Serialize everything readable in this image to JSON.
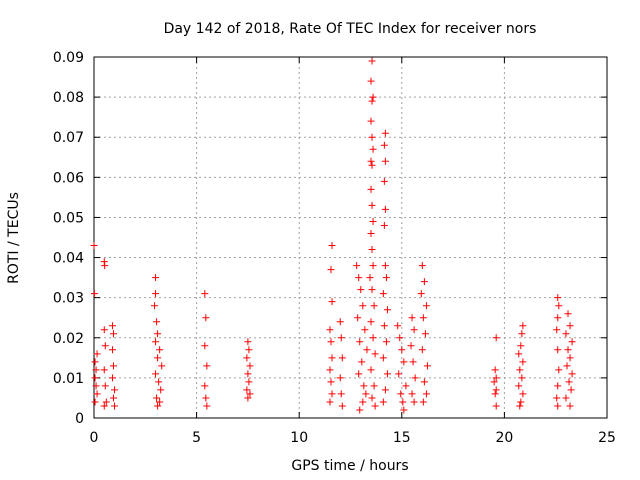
{
  "chart_data": {
    "type": "scatter",
    "title": "Day 142 of 2018, Rate Of TEC Index for receiver nors",
    "xlabel": "GPS time / hours",
    "ylabel": "ROTI / TECUs",
    "xlim": [
      0,
      25
    ],
    "ylim": [
      0,
      0.09
    ],
    "xticks": [
      0,
      5,
      10,
      15,
      20,
      25
    ],
    "xtick_labels": [
      "0",
      "5",
      "10",
      "15",
      "20",
      "25"
    ],
    "yticks": [
      0,
      0.01,
      0.02,
      0.03,
      0.04,
      0.05,
      0.06,
      0.07,
      0.08,
      0.09
    ],
    "ytick_labels": [
      "0",
      "0.01",
      "0.02",
      "0.03",
      "0.04",
      "0.05",
      "0.06",
      "0.07",
      "0.08",
      "0.09"
    ],
    "grid": true,
    "marker": "+",
    "color": "#ff0000",
    "series": [
      {
        "name": "ROTI",
        "points": [
          [
            0.0,
            0.043
          ],
          [
            0.02,
            0.031
          ],
          [
            0.05,
            0.014
          ],
          [
            0.05,
            0.01
          ],
          [
            0.05,
            0.004
          ],
          [
            0.1,
            0.012
          ],
          [
            0.1,
            0.008
          ],
          [
            0.15,
            0.016
          ],
          [
            0.15,
            0.006
          ],
          [
            0.5,
            0.039
          ],
          [
            0.52,
            0.038
          ],
          [
            0.5,
            0.022
          ],
          [
            0.55,
            0.018
          ],
          [
            0.5,
            0.012
          ],
          [
            0.55,
            0.008
          ],
          [
            0.6,
            0.004
          ],
          [
            0.5,
            0.003
          ],
          [
            0.9,
            0.023
          ],
          [
            0.95,
            0.021
          ],
          [
            0.9,
            0.017
          ],
          [
            0.95,
            0.013
          ],
          [
            0.9,
            0.01
          ],
          [
            1.0,
            0.007
          ],
          [
            0.95,
            0.005
          ],
          [
            1.0,
            0.003
          ],
          [
            3.0,
            0.035
          ],
          [
            3.0,
            0.031
          ],
          [
            2.95,
            0.028
          ],
          [
            3.05,
            0.024
          ],
          [
            3.1,
            0.021
          ],
          [
            3.0,
            0.019
          ],
          [
            3.2,
            0.017
          ],
          [
            3.1,
            0.015
          ],
          [
            3.3,
            0.013
          ],
          [
            3.0,
            0.011
          ],
          [
            3.15,
            0.009
          ],
          [
            3.25,
            0.007
          ],
          [
            3.05,
            0.005
          ],
          [
            3.2,
            0.004
          ],
          [
            3.1,
            0.003
          ],
          [
            5.4,
            0.031
          ],
          [
            5.45,
            0.025
          ],
          [
            5.4,
            0.018
          ],
          [
            5.5,
            0.013
          ],
          [
            5.4,
            0.008
          ],
          [
            5.45,
            0.005
          ],
          [
            5.5,
            0.003
          ],
          [
            7.5,
            0.019
          ],
          [
            7.55,
            0.017
          ],
          [
            7.45,
            0.015
          ],
          [
            7.6,
            0.013
          ],
          [
            7.5,
            0.011
          ],
          [
            7.55,
            0.009
          ],
          [
            7.45,
            0.007
          ],
          [
            7.6,
            0.006
          ],
          [
            7.5,
            0.005
          ],
          [
            11.6,
            0.043
          ],
          [
            11.55,
            0.037
          ],
          [
            11.6,
            0.029
          ],
          [
            11.5,
            0.022
          ],
          [
            11.55,
            0.019
          ],
          [
            11.6,
            0.015
          ],
          [
            11.5,
            0.012
          ],
          [
            11.55,
            0.009
          ],
          [
            11.6,
            0.006
          ],
          [
            11.5,
            0.004
          ],
          [
            12.0,
            0.024
          ],
          [
            12.05,
            0.02
          ],
          [
            12.1,
            0.015
          ],
          [
            12.0,
            0.01
          ],
          [
            12.05,
            0.006
          ],
          [
            12.1,
            0.003
          ],
          [
            12.8,
            0.038
          ],
          [
            12.9,
            0.035
          ],
          [
            13.0,
            0.032
          ],
          [
            13.1,
            0.028
          ],
          [
            12.85,
            0.025
          ],
          [
            13.2,
            0.022
          ],
          [
            12.95,
            0.019
          ],
          [
            13.3,
            0.017
          ],
          [
            13.05,
            0.014
          ],
          [
            12.9,
            0.011
          ],
          [
            13.15,
            0.008
          ],
          [
            13.25,
            0.006
          ],
          [
            13.1,
            0.004
          ],
          [
            12.95,
            0.002
          ],
          [
            13.55,
            0.089
          ],
          [
            13.5,
            0.084
          ],
          [
            13.6,
            0.08
          ],
          [
            13.55,
            0.079
          ],
          [
            13.5,
            0.074
          ],
          [
            13.55,
            0.07
          ],
          [
            13.6,
            0.067
          ],
          [
            13.5,
            0.064
          ],
          [
            13.55,
            0.063
          ],
          [
            13.5,
            0.057
          ],
          [
            13.55,
            0.053
          ],
          [
            13.6,
            0.049
          ],
          [
            13.5,
            0.046
          ],
          [
            13.55,
            0.042
          ],
          [
            13.6,
            0.038
          ],
          [
            13.45,
            0.035
          ],
          [
            13.55,
            0.032
          ],
          [
            13.65,
            0.028
          ],
          [
            13.5,
            0.024
          ],
          [
            13.6,
            0.02
          ],
          [
            13.7,
            0.016
          ],
          [
            13.5,
            0.012
          ],
          [
            13.65,
            0.008
          ],
          [
            13.55,
            0.005
          ],
          [
            13.7,
            0.003
          ],
          [
            14.2,
            0.071
          ],
          [
            14.15,
            0.068
          ],
          [
            14.2,
            0.064
          ],
          [
            14.15,
            0.059
          ],
          [
            14.2,
            0.052
          ],
          [
            14.15,
            0.048
          ],
          [
            14.2,
            0.038
          ],
          [
            14.25,
            0.035
          ],
          [
            14.1,
            0.031
          ],
          [
            14.3,
            0.027
          ],
          [
            14.15,
            0.023
          ],
          [
            14.25,
            0.019
          ],
          [
            14.1,
            0.015
          ],
          [
            14.3,
            0.011
          ],
          [
            14.2,
            0.007
          ],
          [
            14.1,
            0.004
          ],
          [
            14.8,
            0.023
          ],
          [
            14.9,
            0.02
          ],
          [
            15.0,
            0.017
          ],
          [
            15.1,
            0.014
          ],
          [
            14.85,
            0.011
          ],
          [
            15.2,
            0.008
          ],
          [
            14.95,
            0.006
          ],
          [
            15.05,
            0.004
          ],
          [
            15.1,
            0.002
          ],
          [
            15.5,
            0.025
          ],
          [
            15.6,
            0.022
          ],
          [
            15.45,
            0.018
          ],
          [
            15.55,
            0.014
          ],
          [
            15.65,
            0.01
          ],
          [
            15.5,
            0.006
          ],
          [
            15.6,
            0.004
          ],
          [
            16.0,
            0.038
          ],
          [
            16.1,
            0.034
          ],
          [
            15.95,
            0.031
          ],
          [
            16.2,
            0.028
          ],
          [
            16.05,
            0.025
          ],
          [
            16.15,
            0.021
          ],
          [
            16.0,
            0.017
          ],
          [
            16.25,
            0.013
          ],
          [
            16.1,
            0.009
          ],
          [
            16.2,
            0.006
          ],
          [
            16.05,
            0.004
          ],
          [
            19.6,
            0.02
          ],
          [
            19.55,
            0.012
          ],
          [
            19.6,
            0.01
          ],
          [
            19.5,
            0.009
          ],
          [
            19.6,
            0.007
          ],
          [
            19.55,
            0.006
          ],
          [
            19.6,
            0.003
          ],
          [
            20.9,
            0.023
          ],
          [
            20.85,
            0.021
          ],
          [
            20.8,
            0.018
          ],
          [
            20.7,
            0.016
          ],
          [
            20.9,
            0.014
          ],
          [
            20.75,
            0.012
          ],
          [
            20.85,
            0.01
          ],
          [
            20.7,
            0.008
          ],
          [
            20.9,
            0.006
          ],
          [
            20.8,
            0.004
          ],
          [
            20.75,
            0.003
          ],
          [
            22.6,
            0.03
          ],
          [
            22.65,
            0.028
          ],
          [
            22.6,
            0.025
          ],
          [
            22.55,
            0.022
          ],
          [
            22.6,
            0.017
          ],
          [
            22.65,
            0.012
          ],
          [
            22.6,
            0.008
          ],
          [
            22.55,
            0.005
          ],
          [
            22.6,
            0.003
          ],
          [
            23.1,
            0.026
          ],
          [
            23.2,
            0.023
          ],
          [
            23.0,
            0.021
          ],
          [
            23.3,
            0.019
          ],
          [
            23.1,
            0.017
          ],
          [
            23.2,
            0.015
          ],
          [
            23.05,
            0.013
          ],
          [
            23.3,
            0.011
          ],
          [
            23.15,
            0.009
          ],
          [
            23.25,
            0.007
          ],
          [
            23.0,
            0.005
          ],
          [
            23.2,
            0.003
          ]
        ]
      }
    ]
  }
}
